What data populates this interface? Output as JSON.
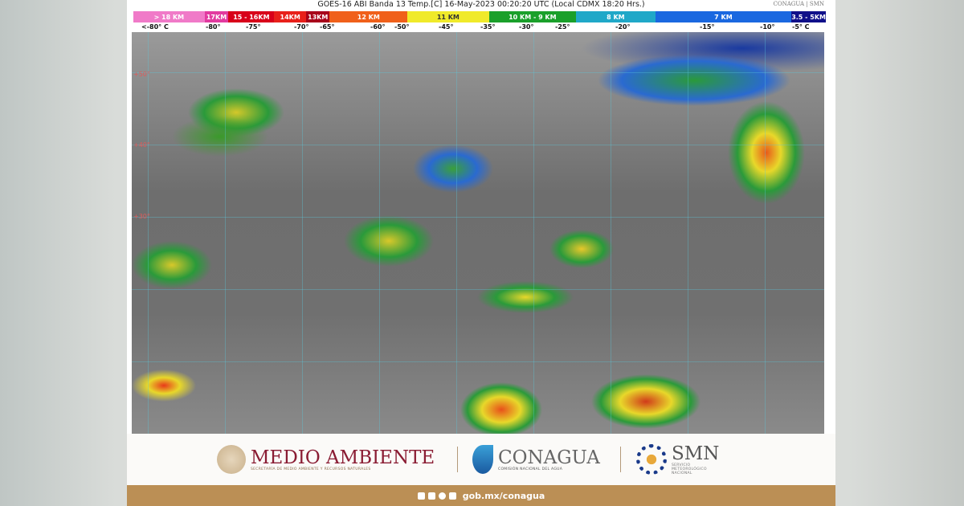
{
  "header": {
    "title": "GOES-16 ABI Banda 13 Temp.[C] 16-May-2023 00:20:20 UTC (Local CDMX  18:20 Hrs.)",
    "mini_brand": "CONAGUA | SMN"
  },
  "legend": [
    {
      "label": "> 18 KM",
      "color": "#f07ac8"
    },
    {
      "label": "17KM",
      "color": "#e23aa0"
    },
    {
      "label": "15 - 16KM",
      "color": "#d8001a"
    },
    {
      "label": "14KM",
      "color": "#e8201a"
    },
    {
      "label": "13KM",
      "color": "#a8001a"
    },
    {
      "label": "12 KM",
      "color": "#f0601a"
    },
    {
      "label": "11 KM",
      "color": "#f0ea2a"
    },
    {
      "label": "10 KM - 9 KM",
      "color": "#1aa02a"
    },
    {
      "label": "8 KM",
      "color": "#20a8c8"
    },
    {
      "label": "7 KM",
      "color": "#1a68e0"
    },
    {
      "label": "3.5 - 5KM",
      "color": "#10108a"
    }
  ],
  "temps": [
    "<-80° C",
    "-80°",
    "-75°",
    "-70°",
    "-65°",
    "-60°",
    "-50°",
    "-45°",
    "-35°",
    "-30°",
    "-25°",
    "-20°",
    "-15°",
    "-10°",
    "-5° C"
  ],
  "map": {
    "latitudes": [
      "+50°",
      "+40°",
      "+30°"
    ]
  },
  "logos": {
    "medio_ambiente": "MEDIO AMBIENTE",
    "medio_ambiente_sub": "SECRETARÍA DE MEDIO AMBIENTE Y RECURSOS NATURALES",
    "conagua": "CONAGUA",
    "conagua_sub": "COMISIÓN NACIONAL DEL AGUA",
    "smn": "SMN",
    "smn_sub": "SERVICIO METEOROLÓGICO NACIONAL"
  },
  "footer": {
    "url": "gob.mx/conagua",
    "icons": [
      "facebook-icon",
      "twitter-icon",
      "instagram-icon",
      "youtube-icon"
    ]
  }
}
